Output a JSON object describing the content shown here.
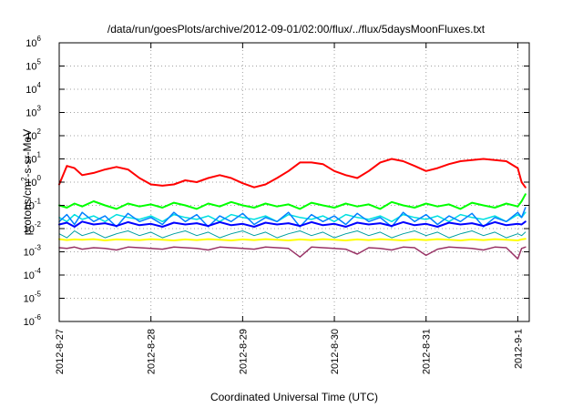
{
  "chart_data": {
    "type": "line",
    "title": "/data/run/goesPlots/archive/2012-09-01/02:00/flux/../flux/5daysMoonFluxes.txt",
    "xlabel": "Coordinated Universal Time (UTC)",
    "ylabel_parts": [
      "protons/cm",
      "2",
      "-s-sr-MeV"
    ],
    "yscale": "log",
    "ylim": [
      1e-06,
      1000000.0
    ],
    "xlim": [
      "2012-08-27",
      "2012-09-01T03:00"
    ],
    "grid": true,
    "x_ticks": [
      {
        "label": "2012-8-27",
        "value": "2012-08-27"
      },
      {
        "label": "2012-8-28",
        "value": "2012-08-28"
      },
      {
        "label": "2012-8-29",
        "value": "2012-08-29"
      },
      {
        "label": "2012-8-30",
        "value": "2012-08-30"
      },
      {
        "label": "2012-8-31",
        "value": "2012-08-31"
      },
      {
        "label": "2012-9-1",
        "value": "2012-09-01"
      }
    ],
    "y_ticks": [
      {
        "base": "10",
        "exp": "6"
      },
      {
        "base": "10",
        "exp": "5"
      },
      {
        "base": "10",
        "exp": "4"
      },
      {
        "base": "10",
        "exp": "3"
      },
      {
        "base": "10",
        "exp": "2"
      },
      {
        "base": "10",
        "exp": "1"
      },
      {
        "base": "10",
        "exp": "0"
      },
      {
        "base": "10",
        "exp": "-1"
      },
      {
        "base": "10",
        "exp": "-2"
      },
      {
        "base": "10",
        "exp": "-3"
      },
      {
        "base": "10",
        "exp": "-4"
      },
      {
        "base": "10",
        "exp": "-5"
      },
      {
        "base": "10",
        "exp": "-6"
      }
    ],
    "x": [
      "2012-08-27T00:00",
      "2012-08-27T02:00",
      "2012-08-27T04:00",
      "2012-08-27T06:00",
      "2012-08-27T09:00",
      "2012-08-27T12:00",
      "2012-08-27T15:00",
      "2012-08-27T18:00",
      "2012-08-27T21:00",
      "2012-08-28T00:00",
      "2012-08-28T03:00",
      "2012-08-28T06:00",
      "2012-08-28T09:00",
      "2012-08-28T12:00",
      "2012-08-28T15:00",
      "2012-08-28T18:00",
      "2012-08-28T21:00",
      "2012-08-29T00:00",
      "2012-08-29T03:00",
      "2012-08-29T06:00",
      "2012-08-29T09:00",
      "2012-08-29T12:00",
      "2012-08-29T15:00",
      "2012-08-29T18:00",
      "2012-08-29T21:00",
      "2012-08-30T00:00",
      "2012-08-30T03:00",
      "2012-08-30T06:00",
      "2012-08-30T09:00",
      "2012-08-30T12:00",
      "2012-08-30T15:00",
      "2012-08-30T18:00",
      "2012-08-30T21:00",
      "2012-08-31T00:00",
      "2012-08-31T03:00",
      "2012-08-31T06:00",
      "2012-08-31T09:00",
      "2012-08-31T12:00",
      "2012-08-31T15:00",
      "2012-08-31T18:00",
      "2012-08-31T21:00",
      "2012-09-01T00:00",
      "2012-09-01T01:00",
      "2012-09-01T02:00"
    ],
    "series": [
      {
        "color": "#ff0000",
        "width": 2,
        "values": [
          0.8,
          5,
          4,
          2,
          2.5,
          3.5,
          4.5,
          3.5,
          1.5,
          0.8,
          0.7,
          0.8,
          1.2,
          1,
          1.5,
          2,
          1.5,
          0.9,
          0.6,
          0.8,
          1.5,
          3,
          7,
          7,
          6,
          3,
          2,
          1.5,
          3,
          7,
          10,
          8,
          5,
          3,
          4,
          6,
          8,
          9,
          10,
          9,
          8,
          4,
          1,
          0.6
        ]
      },
      {
        "color": "#00ff00",
        "width": 2,
        "values": [
          0.1,
          0.08,
          0.12,
          0.09,
          0.15,
          0.1,
          0.07,
          0.12,
          0.09,
          0.11,
          0.08,
          0.13,
          0.1,
          0.07,
          0.12,
          0.09,
          0.14,
          0.1,
          0.08,
          0.12,
          0.09,
          0.11,
          0.07,
          0.13,
          0.1,
          0.08,
          0.12,
          0.09,
          0.11,
          0.07,
          0.14,
          0.1,
          0.08,
          0.12,
          0.09,
          0.11,
          0.07,
          0.13,
          0.1,
          0.08,
          0.12,
          0.09,
          0.15,
          0.3
        ]
      },
      {
        "color": "#00e0e0",
        "width": 1.5,
        "values": [
          0.03,
          0.02,
          0.04,
          0.025,
          0.035,
          0.02,
          0.04,
          0.03,
          0.025,
          0.035,
          0.02,
          0.04,
          0.03,
          0.025,
          0.035,
          0.02,
          0.04,
          0.03,
          0.025,
          0.035,
          0.02,
          0.04,
          0.03,
          0.025,
          0.035,
          0.02,
          0.04,
          0.03,
          0.025,
          0.035,
          0.02,
          0.04,
          0.03,
          0.025,
          0.035,
          0.02,
          0.04,
          0.03,
          0.025,
          0.035,
          0.02,
          0.04,
          0.03,
          0.05
        ]
      },
      {
        "color": "#0080ff",
        "width": 1.5,
        "values": [
          0.02,
          0.04,
          0.015,
          0.05,
          0.02,
          0.035,
          0.012,
          0.045,
          0.02,
          0.03,
          0.015,
          0.05,
          0.02,
          0.04,
          0.012,
          0.035,
          0.02,
          0.045,
          0.015,
          0.03,
          0.02,
          0.05,
          0.012,
          0.04,
          0.02,
          0.035,
          0.015,
          0.045,
          0.02,
          0.03,
          0.012,
          0.05,
          0.02,
          0.04,
          0.015,
          0.035,
          0.02,
          0.045,
          0.012,
          0.03,
          0.02,
          0.05,
          0.03,
          0.08
        ]
      },
      {
        "color": "#0000ff",
        "width": 2,
        "values": [
          0.015,
          0.018,
          0.012,
          0.02,
          0.015,
          0.017,
          0.013,
          0.019,
          0.014,
          0.016,
          0.012,
          0.018,
          0.015,
          0.017,
          0.013,
          0.019,
          0.014,
          0.016,
          0.012,
          0.018,
          0.015,
          0.017,
          0.013,
          0.019,
          0.014,
          0.016,
          0.012,
          0.018,
          0.015,
          0.017,
          0.013,
          0.019,
          0.014,
          0.016,
          0.012,
          0.018,
          0.015,
          0.017,
          0.013,
          0.019,
          0.014,
          0.016,
          0.015,
          0.02
        ]
      },
      {
        "color": "#00a0a0",
        "width": 1,
        "values": [
          0.006,
          0.004,
          0.008,
          0.005,
          0.007,
          0.004,
          0.006,
          0.008,
          0.005,
          0.007,
          0.004,
          0.006,
          0.008,
          0.005,
          0.007,
          0.004,
          0.006,
          0.008,
          0.005,
          0.007,
          0.004,
          0.006,
          0.008,
          0.005,
          0.007,
          0.004,
          0.006,
          0.008,
          0.005,
          0.007,
          0.004,
          0.006,
          0.008,
          0.005,
          0.007,
          0.004,
          0.006,
          0.008,
          0.005,
          0.007,
          0.004,
          0.006,
          0.005,
          0.007
        ]
      },
      {
        "color": "#ffff00",
        "width": 2,
        "values": [
          0.0035,
          0.0032,
          0.0034,
          0.0033,
          0.0035,
          0.0031,
          0.0034,
          0.0033,
          0.0032,
          0.0035,
          0.0033,
          0.0031,
          0.0034,
          0.0032,
          0.0035,
          0.0033,
          0.0031,
          0.0034,
          0.0032,
          0.0035,
          0.0033,
          0.0031,
          0.0034,
          0.0032,
          0.0035,
          0.0033,
          0.0031,
          0.0034,
          0.0032,
          0.0035,
          0.0033,
          0.0031,
          0.0034,
          0.0032,
          0.0035,
          0.0033,
          0.0031,
          0.0034,
          0.0032,
          0.0035,
          0.0033,
          0.0031,
          0.0034,
          0.0036
        ]
      },
      {
        "color": "#993366",
        "width": 1.5,
        "values": [
          0.0015,
          0.0014,
          0.0016,
          0.0013,
          0.0015,
          0.0014,
          0.0012,
          0.0016,
          0.0015,
          0.0014,
          0.0013,
          0.0016,
          0.0015,
          0.0014,
          0.0012,
          0.0016,
          0.0015,
          0.0014,
          0.0013,
          0.0016,
          0.0015,
          0.0014,
          0.0006,
          0.0016,
          0.0015,
          0.0014,
          0.0013,
          0.0008,
          0.0015,
          0.0014,
          0.0012,
          0.0016,
          0.0015,
          0.0007,
          0.0013,
          0.0016,
          0.0015,
          0.0014,
          0.0012,
          0.0016,
          0.0015,
          0.0005,
          0.0014,
          0.0016
        ]
      }
    ]
  }
}
